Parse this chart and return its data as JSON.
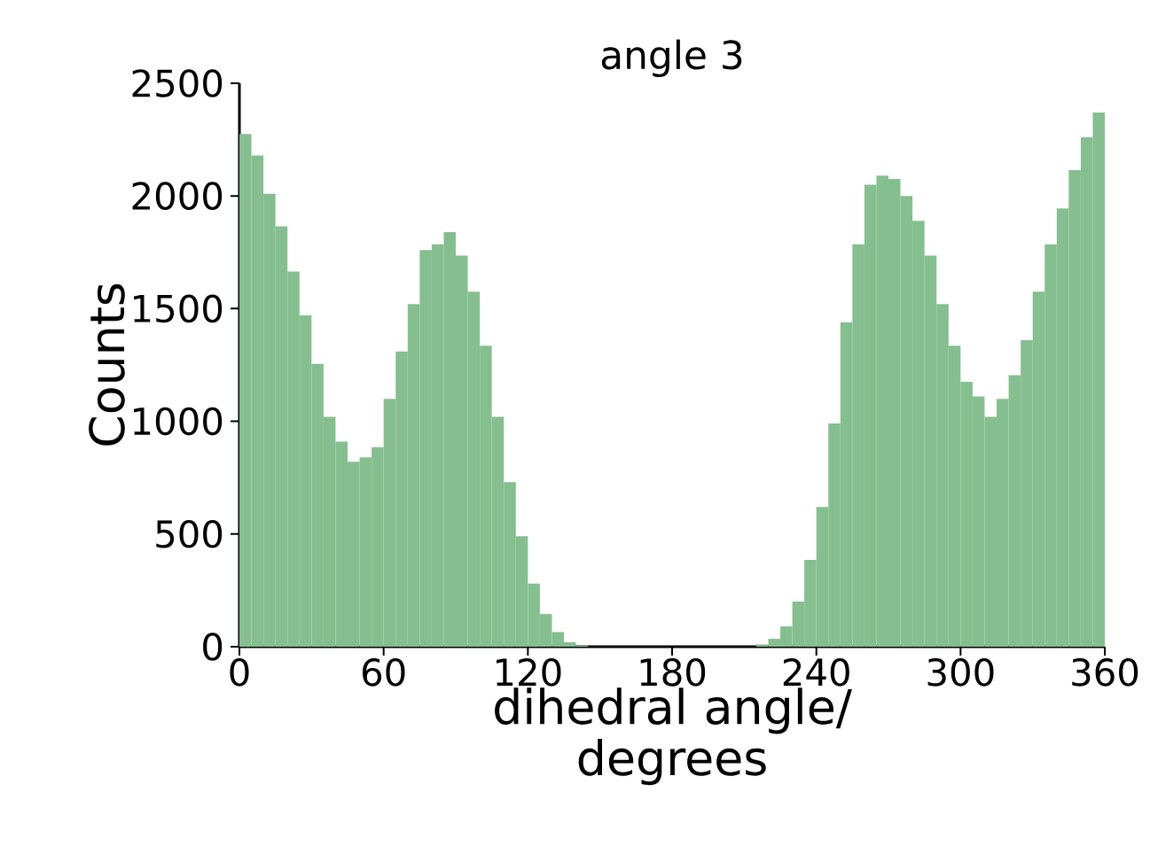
{
  "chart_data": {
    "type": "histogram",
    "title": "angle 3",
    "xlabel": "dihedral angle/ degrees",
    "ylabel": "Counts",
    "color": "#86bf8f",
    "bins": [
      0,
      5,
      10,
      15,
      20,
      25,
      30,
      35,
      40,
      45,
      50,
      55,
      60,
      65,
      70,
      75,
      80,
      85,
      90,
      95,
      100,
      105,
      110,
      115,
      120,
      125,
      130,
      135,
      140,
      145,
      150,
      155,
      160,
      165,
      170,
      175,
      180,
      185,
      190,
      195,
      200,
      205,
      210,
      215,
      220,
      225,
      230,
      235,
      240,
      245,
      250,
      255,
      260,
      265,
      270,
      275,
      280,
      285,
      290,
      295,
      300,
      305,
      310,
      315,
      320,
      325,
      330,
      335,
      340,
      345,
      350,
      355,
      360
    ],
    "values": [
      2275,
      2180,
      2010,
      1865,
      1665,
      1470,
      1255,
      1020,
      910,
      820,
      840,
      885,
      1100,
      1310,
      1520,
      1760,
      1785,
      1840,
      1735,
      1575,
      1335,
      1020,
      730,
      490,
      280,
      145,
      65,
      20,
      5,
      0,
      0,
      0,
      0,
      0,
      0,
      0,
      0,
      0,
      0,
      0,
      0,
      0,
      0,
      10,
      35,
      90,
      200,
      385,
      620,
      990,
      1440,
      1785,
      2050,
      2090,
      2075,
      2000,
      1890,
      1735,
      1520,
      1335,
      1175,
      1110,
      1020,
      1100,
      1205,
      1360,
      1575,
      1785,
      1945,
      2115,
      2260,
      2370
    ],
    "xlim": [
      0,
      360
    ],
    "ylim": [
      0,
      2500
    ],
    "xticks": [
      0,
      60,
      120,
      180,
      240,
      300,
      360
    ],
    "yticks": [
      0,
      500,
      1000,
      1500,
      2000,
      2500
    ],
    "grid": false
  }
}
